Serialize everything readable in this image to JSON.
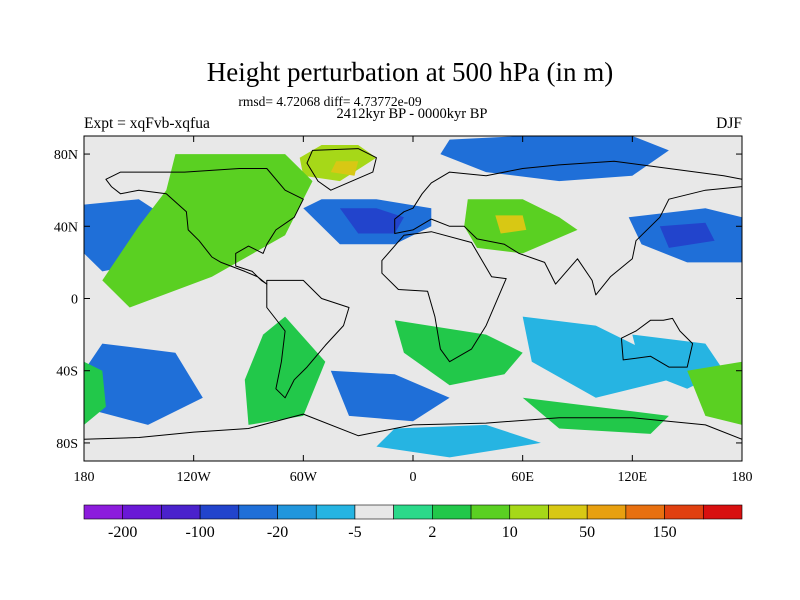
{
  "chart_data": {
    "type": "heatmap",
    "title": "Height perturbation at 500 hPa (in m)",
    "stats": "rmsd= 4.72068 diff= 4.73772e-09",
    "period": "2412kyr BP - 0000kyr BP",
    "experiment": "Expt = xqFvb-xqfua",
    "season": "DJF",
    "x_ticks": [
      {
        "lon": -180,
        "label": "180"
      },
      {
        "lon": -120,
        "label": "120W"
      },
      {
        "lon": -60,
        "label": "60W"
      },
      {
        "lon": 0,
        "label": "0"
      },
      {
        "lon": 60,
        "label": "60E"
      },
      {
        "lon": 120,
        "label": "120E"
      },
      {
        "lon": 180,
        "label": "180"
      }
    ],
    "y_ticks": [
      {
        "lat": 80,
        "label": "80N"
      },
      {
        "lat": 40,
        "label": "40N"
      },
      {
        "lat": 0,
        "label": "0"
      },
      {
        "lat": -40,
        "label": "40S"
      },
      {
        "lat": -80,
        "label": "80S"
      }
    ],
    "xlim": [
      -180,
      180
    ],
    "ylim": [
      -90,
      90
    ],
    "colorbar": {
      "colors": [
        "#8c1cdc",
        "#6a18d6",
        "#4a22cc",
        "#2244cc",
        "#1f6fd8",
        "#2196dc",
        "#26b4e2",
        "#e8e8e8",
        "#2bd98a",
        "#22c84a",
        "#5ad022",
        "#a6d818",
        "#d8c814",
        "#e8a010",
        "#e87010",
        "#e04010",
        "#d81010"
      ],
      "labels": [
        {
          "boundary": 1,
          "label": "-200"
        },
        {
          "boundary": 3,
          "label": "-100"
        },
        {
          "boundary": 5,
          "label": "-20"
        },
        {
          "boundary": 7,
          "label": "-5"
        },
        {
          "boundary": 9,
          "label": "2"
        },
        {
          "boundary": 11,
          "label": "10"
        },
        {
          "boundary": 13,
          "label": "50"
        },
        {
          "boundary": 15,
          "label": "150"
        }
      ]
    },
    "anomaly_regions": [
      {
        "name": "north-atlantic-low",
        "color": "#1f6fd8",
        "points": [
          [
            -60,
            50
          ],
          [
            -40,
            30
          ],
          [
            -10,
            30
          ],
          [
            10,
            40
          ],
          [
            10,
            50
          ],
          [
            -20,
            55
          ],
          [
            -50,
            55
          ]
        ]
      },
      {
        "name": "north-atlantic-low-core",
        "color": "#2244cc",
        "points": [
          [
            -40,
            50
          ],
          [
            -30,
            36
          ],
          [
            -10,
            36
          ],
          [
            -5,
            45
          ],
          [
            -20,
            50
          ]
        ]
      },
      {
        "name": "greenland-high",
        "color": "#a6d818",
        "points": [
          [
            -50,
            85
          ],
          [
            -30,
            85
          ],
          [
            -20,
            78
          ],
          [
            -40,
            65
          ],
          [
            -60,
            68
          ],
          [
            -62,
            78
          ]
        ]
      },
      {
        "name": "greenland-high-core",
        "color": "#d8c814",
        "points": [
          [
            -42,
            76
          ],
          [
            -30,
            76
          ],
          [
            -32,
            68
          ],
          [
            -45,
            70
          ]
        ]
      },
      {
        "name": "eurasia-high",
        "color": "#5ad022",
        "points": [
          [
            30,
            55
          ],
          [
            60,
            55
          ],
          [
            80,
            45
          ],
          [
            90,
            38
          ],
          [
            60,
            25
          ],
          [
            35,
            28
          ],
          [
            28,
            40
          ]
        ]
      },
      {
        "name": "eurasia-high-core",
        "color": "#d8c814",
        "points": [
          [
            45,
            46
          ],
          [
            60,
            46
          ],
          [
            62,
            38
          ],
          [
            48,
            36
          ]
        ]
      },
      {
        "name": "arctic-siberia-low",
        "color": "#1f6fd8",
        "points": [
          [
            20,
            88
          ],
          [
            60,
            90
          ],
          [
            120,
            90
          ],
          [
            140,
            82
          ],
          [
            120,
            68
          ],
          [
            80,
            65
          ],
          [
            40,
            70
          ],
          [
            15,
            80
          ]
        ]
      },
      {
        "name": "north-pacific-low",
        "color": "#1f6fd8",
        "points": [
          [
            118,
            45
          ],
          [
            160,
            50
          ],
          [
            180,
            45
          ],
          [
            180,
            20
          ],
          [
            150,
            20
          ],
          [
            125,
            30
          ]
        ]
      },
      {
        "name": "north-pacific-low-core",
        "color": "#2244cc",
        "points": [
          [
            135,
            40
          ],
          [
            160,
            42
          ],
          [
            165,
            32
          ],
          [
            140,
            28
          ]
        ]
      },
      {
        "name": "northeast-pacific-low",
        "color": "#1f6fd8",
        "points": [
          [
            -180,
            52
          ],
          [
            -150,
            55
          ],
          [
            -135,
            45
          ],
          [
            -145,
            20
          ],
          [
            -170,
            15
          ],
          [
            -180,
            25
          ]
        ]
      },
      {
        "name": "north-america-high",
        "color": "#5ad022",
        "points": [
          [
            -130,
            80
          ],
          [
            -70,
            80
          ],
          [
            -55,
            65
          ],
          [
            -70,
            35
          ],
          [
            -110,
            12
          ],
          [
            -155,
            -5
          ],
          [
            -170,
            10
          ],
          [
            -150,
            40
          ],
          [
            -135,
            60
          ]
        ]
      },
      {
        "name": "south-atlantic-high",
        "color": "#22c84a",
        "points": [
          [
            -70,
            -10
          ],
          [
            -48,
            -35
          ],
          [
            -60,
            -65
          ],
          [
            -90,
            -70
          ],
          [
            -92,
            -45
          ],
          [
            -82,
            -20
          ]
        ]
      },
      {
        "name": "south-pacific-low",
        "color": "#1f6fd8",
        "points": [
          [
            -170,
            -25
          ],
          [
            -130,
            -30
          ],
          [
            -115,
            -55
          ],
          [
            -145,
            -70
          ],
          [
            -175,
            -62
          ],
          [
            -180,
            -40
          ]
        ]
      },
      {
        "name": "south-pacific-high-west",
        "color": "#22c84a",
        "points": [
          [
            -180,
            -35
          ],
          [
            -170,
            -40
          ],
          [
            -168,
            -60
          ],
          [
            -180,
            -70
          ]
        ]
      },
      {
        "name": "southern-ocean-low",
        "color": "#1f6fd8",
        "points": [
          [
            -45,
            -40
          ],
          [
            -10,
            -42
          ],
          [
            20,
            -55
          ],
          [
            0,
            -68
          ],
          [
            -35,
            -65
          ]
        ]
      },
      {
        "name": "south-africa-high",
        "color": "#22c84a",
        "points": [
          [
            -10,
            -12
          ],
          [
            40,
            -20
          ],
          [
            60,
            -30
          ],
          [
            50,
            -42
          ],
          [
            20,
            -48
          ],
          [
            -5,
            -30
          ]
        ]
      },
      {
        "name": "indian-ocean-low",
        "color": "#26b4e2",
        "points": [
          [
            60,
            -10
          ],
          [
            100,
            -15
          ],
          [
            130,
            -30
          ],
          [
            140,
            -45
          ],
          [
            100,
            -55
          ],
          [
            65,
            -35
          ]
        ]
      },
      {
        "name": "australia-low",
        "color": "#26b4e2",
        "points": [
          [
            120,
            -20
          ],
          [
            160,
            -25
          ],
          [
            170,
            -40
          ],
          [
            150,
            -50
          ],
          [
            125,
            -40
          ]
        ]
      },
      {
        "name": "southern-indian-high",
        "color": "#22c84a",
        "points": [
          [
            60,
            -55
          ],
          [
            100,
            -60
          ],
          [
            140,
            -65
          ],
          [
            130,
            -75
          ],
          [
            80,
            -72
          ]
        ]
      },
      {
        "name": "dateline-south-high",
        "color": "#5ad022",
        "points": [
          [
            150,
            -40
          ],
          [
            180,
            -35
          ],
          [
            180,
            -70
          ],
          [
            160,
            -65
          ]
        ]
      },
      {
        "name": "antarctic-low",
        "color": "#26b4e2",
        "points": [
          [
            -10,
            -72
          ],
          [
            40,
            -70
          ],
          [
            70,
            -80
          ],
          [
            20,
            -88
          ],
          [
            -20,
            -82
          ]
        ]
      }
    ],
    "continents": [
      {
        "name": "north-america",
        "points": [
          [
            -168,
            66
          ],
          [
            -160,
            70
          ],
          [
            -140,
            70
          ],
          [
            -125,
            70
          ],
          [
            -95,
            72
          ],
          [
            -80,
            72
          ],
          [
            -70,
            60
          ],
          [
            -60,
            55
          ],
          [
            -65,
            45
          ],
          [
            -75,
            38
          ],
          [
            -80,
            30
          ],
          [
            -82,
            25
          ],
          [
            -90,
            29
          ],
          [
            -97,
            25
          ],
          [
            -97,
            18
          ],
          [
            -88,
            15
          ],
          [
            -83,
            10
          ],
          [
            -80,
            8
          ],
          [
            -85,
            12
          ],
          [
            -92,
            15
          ],
          [
            -105,
            20
          ],
          [
            -110,
            23
          ],
          [
            -117,
            32
          ],
          [
            -123,
            38
          ],
          [
            -124,
            48
          ],
          [
            -135,
            58
          ],
          [
            -150,
            60
          ],
          [
            -160,
            58
          ],
          [
            -165,
            62
          ]
        ]
      },
      {
        "name": "greenland",
        "points": [
          [
            -55,
            82
          ],
          [
            -30,
            83
          ],
          [
            -20,
            78
          ],
          [
            -22,
            70
          ],
          [
            -45,
            60
          ],
          [
            -52,
            65
          ],
          [
            -58,
            75
          ]
        ]
      },
      {
        "name": "south-america",
        "points": [
          [
            -80,
            10
          ],
          [
            -60,
            10
          ],
          [
            -50,
            0
          ],
          [
            -35,
            -5
          ],
          [
            -38,
            -15
          ],
          [
            -48,
            -26
          ],
          [
            -58,
            -38
          ],
          [
            -65,
            -45
          ],
          [
            -70,
            -55
          ],
          [
            -75,
            -50
          ],
          [
            -72,
            -35
          ],
          [
            -70,
            -18
          ],
          [
            -80,
            -5
          ]
        ]
      },
      {
        "name": "eurasia",
        "points": [
          [
            -10,
            36
          ],
          [
            -10,
            44
          ],
          [
            -5,
            48
          ],
          [
            0,
            50
          ],
          [
            5,
            58
          ],
          [
            10,
            64
          ],
          [
            20,
            70
          ],
          [
            40,
            68
          ],
          [
            60,
            72
          ],
          [
            80,
            74
          ],
          [
            110,
            76
          ],
          [
            140,
            72
          ],
          [
            170,
            68
          ],
          [
            180,
            66
          ],
          [
            180,
            62
          ],
          [
            160,
            60
          ],
          [
            140,
            55
          ],
          [
            135,
            45
          ],
          [
            122,
            32
          ],
          [
            120,
            22
          ],
          [
            108,
            12
          ],
          [
            100,
            2
          ],
          [
            98,
            10
          ],
          [
            90,
            22
          ],
          [
            78,
            8
          ],
          [
            72,
            20
          ],
          [
            58,
            25
          ],
          [
            50,
            30
          ],
          [
            35,
            33
          ],
          [
            28,
            40
          ],
          [
            20,
            40
          ],
          [
            10,
            44
          ],
          [
            0,
            38
          ]
        ]
      },
      {
        "name": "africa",
        "points": [
          [
            -17,
            21
          ],
          [
            -5,
            35
          ],
          [
            10,
            37
          ],
          [
            32,
            31
          ],
          [
            43,
            12
          ],
          [
            51,
            11
          ],
          [
            40,
            -15
          ],
          [
            32,
            -28
          ],
          [
            20,
            -35
          ],
          [
            15,
            -28
          ],
          [
            12,
            -10
          ],
          [
            8,
            4
          ],
          [
            -8,
            5
          ],
          [
            -17,
            14
          ]
        ]
      },
      {
        "name": "australia",
        "points": [
          [
            114,
            -22
          ],
          [
            122,
            -18
          ],
          [
            130,
            -12
          ],
          [
            137,
            -12
          ],
          [
            142,
            -11
          ],
          [
            146,
            -18
          ],
          [
            153,
            -25
          ],
          [
            150,
            -38
          ],
          [
            140,
            -38
          ],
          [
            130,
            -32
          ],
          [
            115,
            -34
          ]
        ]
      },
      {
        "name": "antarctica",
        "points": [
          [
            -180,
            -78
          ],
          [
            -150,
            -77
          ],
          [
            -120,
            -74
          ],
          [
            -90,
            -72
          ],
          [
            -60,
            -64
          ],
          [
            -30,
            -76
          ],
          [
            0,
            -70
          ],
          [
            40,
            -69
          ],
          [
            80,
            -66
          ],
          [
            120,
            -66
          ],
          [
            160,
            -70
          ],
          [
            180,
            -78
          ],
          [
            180,
            -90
          ],
          [
            -180,
            -90
          ]
        ]
      }
    ]
  }
}
